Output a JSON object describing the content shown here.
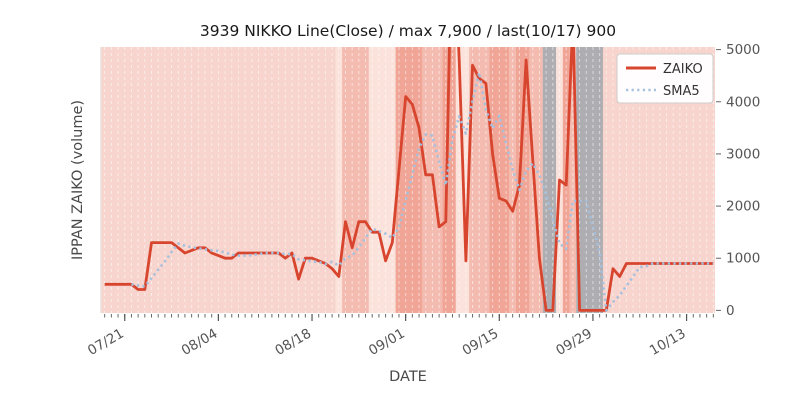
{
  "title": "3939 NIKKO Line(Close) / max 7,900 / last(10/17) 900",
  "legend": {
    "position": "upper right",
    "items": [
      {
        "label": "ZAIKO",
        "style": "solid",
        "color": "#d8452e"
      },
      {
        "label": "SMA5",
        "style": "dotted",
        "color": "#a4c0de"
      }
    ]
  },
  "chart_data": {
    "type": "line",
    "title": "3939 NIKKO Line(Close) / max 7,900 / last(10/17) 900",
    "xlabel": "DATE",
    "ylabel": "IPPAN ZAIKO (volume)",
    "ylim": [
      -50,
      5050
    ],
    "grid": "white dashed vertical line per day",
    "legend_position": "upper right",
    "y_ticks": [
      0,
      1000,
      2000,
      3000,
      4000,
      5000
    ],
    "y_tick_labels": [
      "0",
      "1000",
      "2000",
      "3000",
      "4000",
      "5000"
    ],
    "x_major_ticks": [
      "07/21",
      "08/04",
      "08/18",
      "09/01",
      "09/15",
      "09/29",
      "10/13"
    ],
    "dates": [
      "07/18",
      "07/19",
      "07/20",
      "07/21",
      "07/22",
      "07/23",
      "07/24",
      "07/25",
      "07/26",
      "07/27",
      "07/28",
      "07/29",
      "07/30",
      "07/31",
      "08/01",
      "08/02",
      "08/03",
      "08/04",
      "08/05",
      "08/06",
      "08/07",
      "08/08",
      "08/09",
      "08/10",
      "08/11",
      "08/12",
      "08/13",
      "08/14",
      "08/15",
      "08/16",
      "08/17",
      "08/18",
      "08/19",
      "08/20",
      "08/21",
      "08/22",
      "08/23",
      "08/24",
      "08/25",
      "08/26",
      "08/27",
      "08/28",
      "08/29",
      "08/30",
      "08/31",
      "09/01",
      "09/02",
      "09/03",
      "09/04",
      "09/05",
      "09/06",
      "09/07",
      "09/08",
      "09/09",
      "09/10",
      "09/11",
      "09/12",
      "09/13",
      "09/14",
      "09/15",
      "09/16",
      "09/17",
      "09/18",
      "09/19",
      "09/20",
      "09/21",
      "09/22",
      "09/23",
      "09/24",
      "09/25",
      "09/26",
      "09/27",
      "09/28",
      "09/29",
      "09/30",
      "10/01",
      "10/02",
      "10/03",
      "10/04",
      "10/05",
      "10/06",
      "10/07",
      "10/08",
      "10/09",
      "10/10",
      "10/11",
      "10/12",
      "10/13",
      "10/14",
      "10/15",
      "10/16",
      "10/17"
    ],
    "series": [
      {
        "name": "ZAIKO",
        "color": "#d8452e",
        "style": "solid",
        "width": 2.8,
        "values": [
          500,
          500,
          500,
          500,
          500,
          400,
          400,
          1300,
          1300,
          1300,
          1300,
          1200,
          1100,
          1150,
          1200,
          1200,
          1100,
          1050,
          1000,
          1000,
          1100,
          1100,
          1100,
          1100,
          1100,
          1100,
          1100,
          1000,
          1100,
          600,
          1000,
          1000,
          950,
          900,
          800,
          650,
          1700,
          1200,
          1700,
          1700,
          1500,
          1500,
          950,
          1300,
          2700,
          4100,
          3950,
          3500,
          2600,
          2600,
          1600,
          1700,
          7900,
          4800,
          950,
          4700,
          4450,
          4350,
          3000,
          2150,
          2100,
          1900,
          2400,
          4800,
          2900,
          1000,
          0,
          0,
          2500,
          2400,
          5600,
          0,
          0,
          0,
          0,
          0,
          800,
          650,
          900,
          900,
          900,
          900,
          900,
          900,
          900,
          900,
          900,
          900,
          900,
          900,
          900,
          900
        ]
      },
      {
        "name": "SMA5",
        "color": "#a4c0de",
        "style": "dotted",
        "width": 2.6,
        "values": [
          null,
          null,
          null,
          null,
          500,
          480,
          460,
          620,
          780,
          940,
          1120,
          1280,
          1240,
          1210,
          1190,
          1170,
          1150,
          1140,
          1110,
          1070,
          1050,
          1050,
          1060,
          1080,
          1100,
          1100,
          1100,
          1080,
          1080,
          980,
          960,
          940,
          930,
          890,
          930,
          860,
          1000,
          1050,
          1210,
          1390,
          1560,
          1520,
          1470,
          1390,
          1590,
          2110,
          2600,
          3110,
          3370,
          3350,
          2850,
          2400,
          3280,
          3720,
          3390,
          4010,
          4560,
          3850,
          3490,
          3730,
          3210,
          2700,
          2310,
          2670,
          2820,
          2600,
          2220,
          1740,
          1280,
          1180,
          2100,
          2100,
          2100,
          1600,
          1120,
          0,
          160,
          290,
          470,
          650,
          830,
          850,
          900,
          900,
          900,
          900,
          900,
          900,
          900,
          900,
          900,
          900
        ]
      }
    ],
    "bands": [
      {
        "from": "07/18",
        "to": "08/21",
        "color": "#f7d4cd"
      },
      {
        "from": "08/22",
        "to": "08/22",
        "color": "#fbe2db"
      },
      {
        "from": "08/23",
        "to": "08/26",
        "color": "#f4bcb0"
      },
      {
        "from": "08/27",
        "to": "08/30",
        "color": "#fbe2db"
      },
      {
        "from": "08/31",
        "to": "09/03",
        "color": "#f0a596"
      },
      {
        "from": "09/04",
        "to": "09/06",
        "color": "#f4bcb0"
      },
      {
        "from": "09/07",
        "to": "09/08",
        "color": "#f0a596"
      },
      {
        "from": "09/09",
        "to": "09/10",
        "color": "#fbe2db"
      },
      {
        "from": "09/11",
        "to": "09/13",
        "color": "#f4bcb0"
      },
      {
        "from": "09/14",
        "to": "09/16",
        "color": "#f0a596"
      },
      {
        "from": "09/17",
        "to": "09/17",
        "color": "#f4bcb0"
      },
      {
        "from": "09/18",
        "to": "09/19",
        "color": "#f0a596"
      },
      {
        "from": "09/20",
        "to": "09/21",
        "color": "#f4bcb0"
      },
      {
        "from": "09/22",
        "to": "09/23",
        "color": "#aeaeb2"
      },
      {
        "from": "09/24",
        "to": "09/24",
        "color": "#fbe2db"
      },
      {
        "from": "09/25",
        "to": "09/25",
        "color": "#f0a596"
      },
      {
        "from": "09/26",
        "to": "09/26",
        "color": "#f4bcb0"
      },
      {
        "from": "09/27",
        "to": "09/30",
        "color": "#aeaeb2"
      },
      {
        "from": "10/01",
        "to": "10/17",
        "color": "#f7d4cd"
      }
    ],
    "colors": {
      "plot_background": "#e9e9e9",
      "figure_background": "#ffffff",
      "gridline": "#ffffff",
      "tick_label": "#555555",
      "axis_label": "#4a4a4a",
      "title": "#1a1a1a"
    }
  }
}
